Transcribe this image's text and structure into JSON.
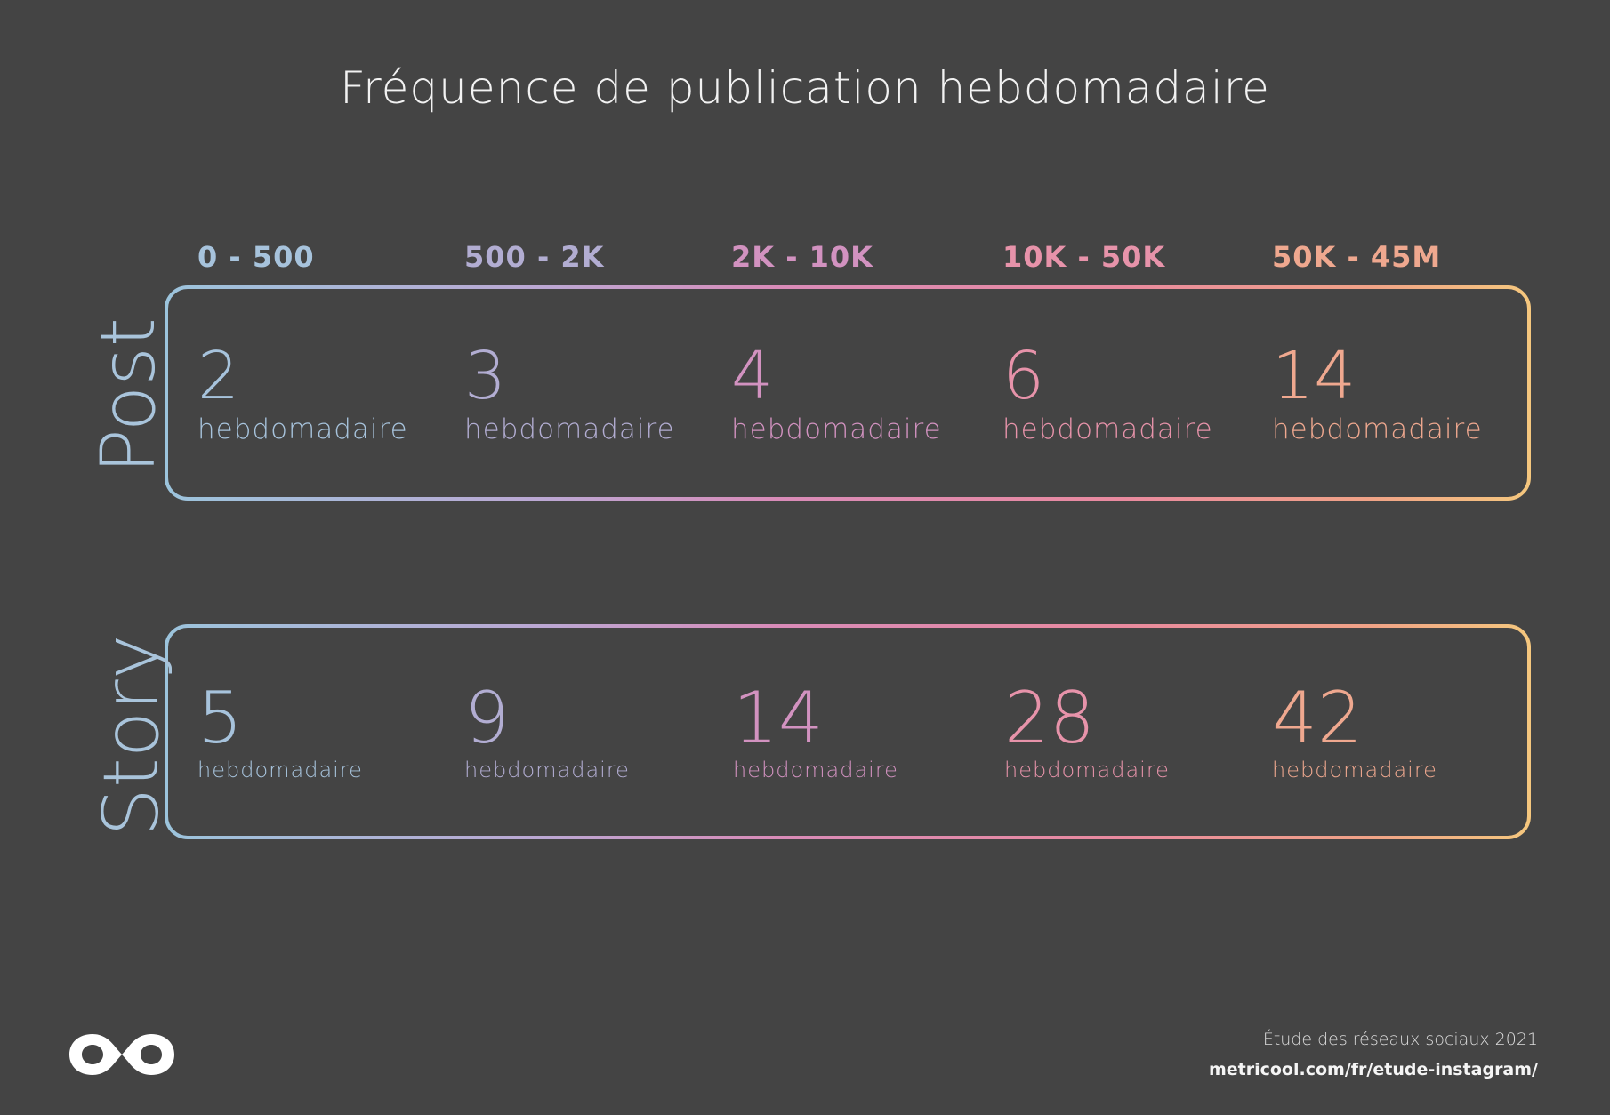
{
  "title": "Fréquence de publication hebdomadaire",
  "colors": {
    "background": "#444444",
    "gradient": [
      "#9cc4dc",
      "#b8a9d6",
      "#d98bb8",
      "#e98a9f",
      "#f0a287",
      "#f5c77e"
    ]
  },
  "ranges": [
    {
      "label": "0 - 500",
      "color": "#a7c3dc"
    },
    {
      "label": "500 - 2K",
      "color": "#b2add2"
    },
    {
      "label": "2K - 10K",
      "color": "#d292c0"
    },
    {
      "label": "10K - 50K",
      "color": "#e793aa"
    },
    {
      "label": "50K - 45M",
      "color": "#efa88f"
    }
  ],
  "rows": [
    {
      "label": "Post",
      "label_color": "#a9c4db",
      "values": [
        {
          "value": "2",
          "unit": "hebdomadaire",
          "color": "#a7c3dc"
        },
        {
          "value": "3",
          "unit": "hebdomadaire",
          "color": "#b2add2"
        },
        {
          "value": "4",
          "unit": "hebdomadaire",
          "color": "#d292c0"
        },
        {
          "value": "6",
          "unit": "hebdomadaire",
          "color": "#e793aa"
        },
        {
          "value": "14",
          "unit": "hebdomadaire",
          "color": "#efa88f"
        }
      ]
    },
    {
      "label": "Story",
      "label_color": "#a9c4db",
      "values": [
        {
          "value": "5",
          "unit": "hebdomadaire",
          "color": "#a7c3dc"
        },
        {
          "value": "9",
          "unit": "hebdomadaire",
          "color": "#b2add2"
        },
        {
          "value": "14",
          "unit": "hebdomadaire",
          "color": "#d292c0"
        },
        {
          "value": "28",
          "unit": "hebdomadaire",
          "color": "#e793aa"
        },
        {
          "value": "42",
          "unit": "hebdomadaire",
          "color": "#efa88f"
        }
      ]
    }
  ],
  "footer": {
    "note": "Étude des réseaux sociaux 2021",
    "url": "metricool.com/fr/etude-instagram/",
    "logo_icon": "metricool-logo-icon"
  }
}
